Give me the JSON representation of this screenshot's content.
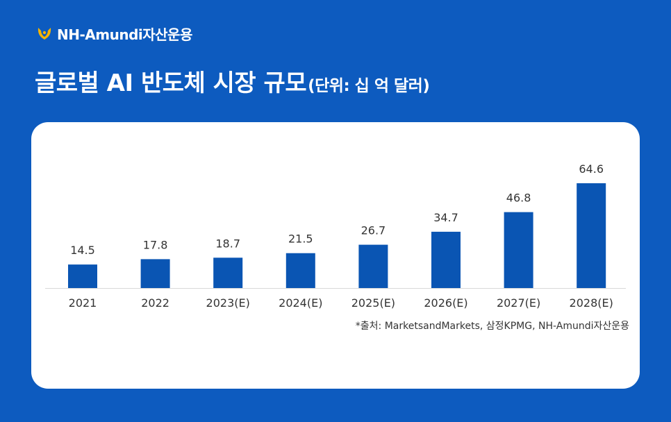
{
  "brand": {
    "name": "NH-Amundi자산운용",
    "mark_color": "#f5b400"
  },
  "title": {
    "main": "글로벌 AI 반도체 시장 규모",
    "unit": "(단위: 십 억 달러)"
  },
  "source": "*출처: MarketsandMarkets, 삼정KPMG, NH-Amundi자산운용",
  "colors": {
    "background": "#0d5bbf",
    "bar": "#0a55b3",
    "axis": "#d9d9d9",
    "label": "#333333"
  },
  "chart_data": {
    "type": "bar",
    "title": "글로벌 AI 반도체 시장 규모",
    "unit": "(단위: 십 억 달러)",
    "xlabel": "",
    "ylabel": "",
    "categories": [
      "2021",
      "2022",
      "2023(E)",
      "2024(E)",
      "2025(E)",
      "2026(E)",
      "2027(E)",
      "2028(E)"
    ],
    "values": [
      14.5,
      17.8,
      18.7,
      21.5,
      26.7,
      34.7,
      46.8,
      64.6
    ],
    "data_labels": [
      "14.5",
      "17.8",
      "18.7",
      "21.5",
      "26.7",
      "34.7",
      "46.8",
      "64.6"
    ],
    "ylim": [
      0,
      64.6
    ],
    "grid": false,
    "legend": "none"
  }
}
